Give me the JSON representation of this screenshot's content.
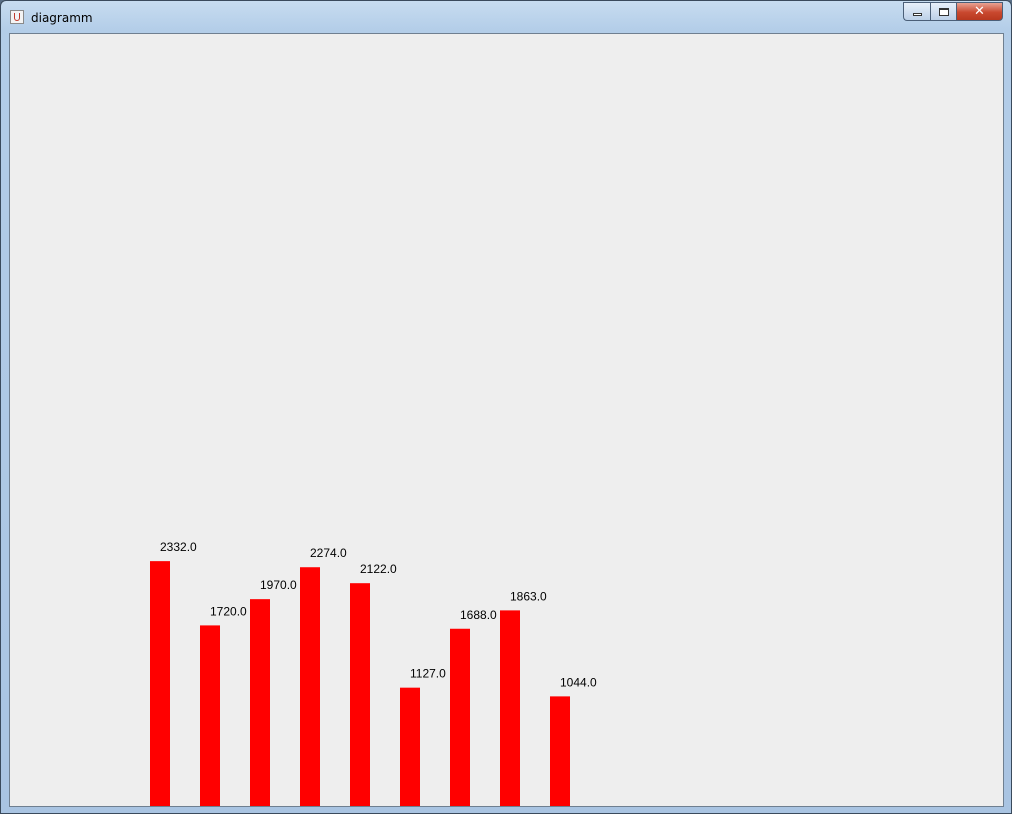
{
  "window": {
    "title": "diagramm",
    "icon": "java-cup-icon",
    "controls": {
      "minimize": "minimize-icon",
      "maximize": "maximize-icon",
      "close": "close-icon",
      "close_glyph": "✕"
    }
  },
  "chart_data": {
    "type": "bar",
    "categories": [
      "",
      "",
      "",
      "",
      "",
      "",
      "",
      "",
      ""
    ],
    "values": [
      2332.0,
      1720.0,
      1970.0,
      2274.0,
      2122.0,
      1127.0,
      1688.0,
      1863.0,
      1044.0
    ],
    "value_labels": [
      "2332.0",
      "1720.0",
      "1970.0",
      "2274.0",
      "2122.0",
      "1127.0",
      "1688.0",
      "1863.0",
      "1044.0"
    ],
    "title": "",
    "xlabel": "",
    "ylabel": "",
    "grid": false,
    "legend": "none",
    "bar_color": "#ff0000",
    "background_color": "#eeeeee"
  }
}
